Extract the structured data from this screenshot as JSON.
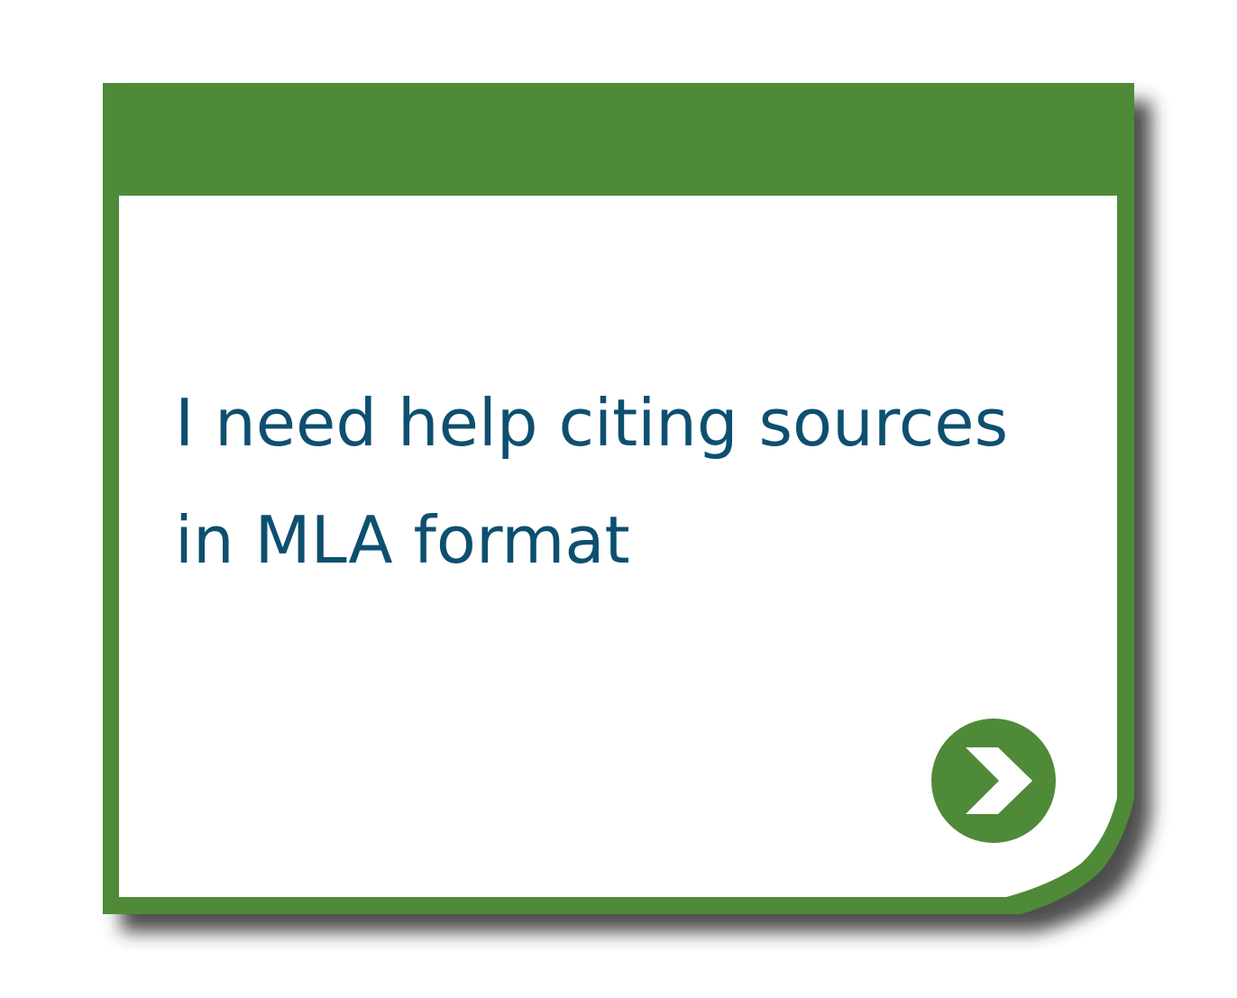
{
  "card": {
    "message_line_1": "I need help citing sources",
    "message_line_2": "in MLA format",
    "next_icon": "chevron-right-icon"
  },
  "colors": {
    "frame": "#4f8a38",
    "text": "#0e4f70",
    "panel": "#ffffff",
    "shadow": "#2f2f2f",
    "chevron": "#ffffff"
  }
}
